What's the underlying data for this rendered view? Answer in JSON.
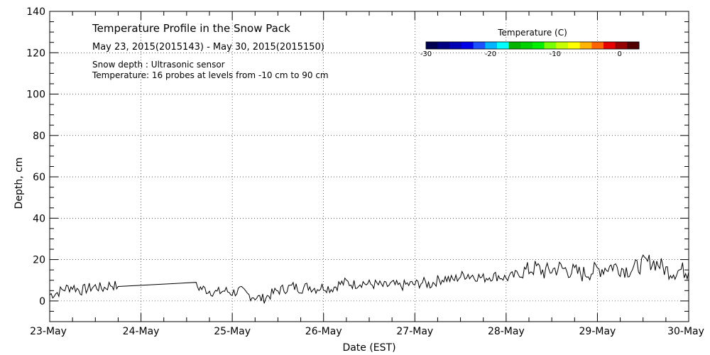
{
  "chart_data": {
    "type": "line",
    "title": "Temperature Profile in the Snow Pack",
    "subtitle": "May 23, 2015(2015143) - May 30, 2015(2015150)",
    "annotations": [
      "Snow depth : Ultrasonic sensor",
      "Temperature: 16 probes at levels from -10 cm to 90 cm"
    ],
    "xlabel": "Date (EST)",
    "ylabel": "Depth, cm",
    "x_ticks": [
      "23-May",
      "24-May",
      "25-May",
      "26-May",
      "27-May",
      "28-May",
      "29-May",
      "30-May"
    ],
    "xlim": [
      "23-May",
      "30-May"
    ],
    "ylim": [
      -10,
      140
    ],
    "y_ticks": [
      0,
      20,
      40,
      60,
      80,
      100,
      120,
      140
    ],
    "grid": true,
    "colorbar": {
      "title": "Temperature (C)",
      "range": [
        -30,
        3
      ],
      "tick_labels": [
        "-30",
        "-20",
        "-10",
        "0"
      ],
      "tick_values": [
        -30,
        -20,
        -10,
        0
      ],
      "colors": [
        "#000050",
        "#000080",
        "#0000b4",
        "#0000e6",
        "#1e50ff",
        "#00b4ff",
        "#00ffff",
        "#00b400",
        "#00d200",
        "#00f000",
        "#78ff00",
        "#c8ff00",
        "#ffff00",
        "#ffb400",
        "#ff6400",
        "#e60000",
        "#960000",
        "#500000"
      ]
    },
    "series": [
      {
        "color": "#000000",
        "points": [
          [
            "23-May 00:00",
            3
          ],
          [
            "23-May 02:00",
            4
          ],
          [
            "23-May 04:00",
            6
          ],
          [
            "23-May 06:00",
            7
          ],
          [
            "23-May 08:00",
            5
          ],
          [
            "23-May 10:00",
            6
          ],
          [
            "23-May 12:00",
            7
          ],
          [
            "23-May 14:00",
            6
          ],
          [
            "23-May 16:00",
            8
          ],
          [
            "23-May 18:00",
            7
          ],
          [
            "24-May 14:30",
            7
          ],
          [
            "24-May 16:00",
            6
          ],
          [
            "24-May 18:00",
            5
          ],
          [
            "24-May 20:00",
            4
          ],
          [
            "24-May 22:00",
            5
          ],
          [
            "25-May 00:00",
            4
          ],
          [
            "25-May 02:00",
            5
          ],
          [
            "25-May 04:00",
            3
          ],
          [
            "25-May 06:00",
            2
          ],
          [
            "25-May 08:00",
            1
          ],
          [
            "25-May 10:00",
            3
          ],
          [
            "25-May 12:00",
            5
          ],
          [
            "25-May 14:00",
            6
          ],
          [
            "25-May 16:00",
            7
          ],
          [
            "25-May 18:00",
            6
          ],
          [
            "25-May 20:00",
            7
          ],
          [
            "25-May 22:00",
            6
          ],
          [
            "26-May 00:00",
            7
          ],
          [
            "26-May 02:00",
            6
          ],
          [
            "26-May 04:00",
            8
          ],
          [
            "26-May 06:00",
            9
          ],
          [
            "26-May 08:00",
            8
          ],
          [
            "26-May 10:00",
            9
          ],
          [
            "26-May 12:00",
            8
          ],
          [
            "26-May 14:00",
            8
          ],
          [
            "26-May 16:00",
            7
          ],
          [
            "26-May 18:00",
            8
          ],
          [
            "26-May 20:00",
            7
          ],
          [
            "26-May 22:00",
            8
          ],
          [
            "27-May 00:00",
            8
          ],
          [
            "27-May 02:00",
            9
          ],
          [
            "27-May 04:00",
            8
          ],
          [
            "27-May 06:00",
            10
          ],
          [
            "27-May 08:00",
            11
          ],
          [
            "27-May 10:00",
            10
          ],
          [
            "27-May 12:00",
            12
          ],
          [
            "27-May 14:00",
            13
          ],
          [
            "27-May 16:00",
            12
          ],
          [
            "27-May 18:00",
            11
          ],
          [
            "27-May 20:00",
            12
          ],
          [
            "27-May 22:00",
            12
          ],
          [
            "28-May 00:00",
            11
          ],
          [
            "28-May 02:00",
            12
          ],
          [
            "28-May 04:00",
            14
          ],
          [
            "28-May 06:00",
            15
          ],
          [
            "28-May 08:00",
            16
          ],
          [
            "28-May 10:00",
            14
          ],
          [
            "28-May 12:00",
            15
          ],
          [
            "28-May 14:00",
            16
          ],
          [
            "28-May 16:00",
            15
          ],
          [
            "28-May 18:00",
            14
          ],
          [
            "28-May 20:00",
            13
          ],
          [
            "28-May 22:00",
            14
          ],
          [
            "29-May 00:00",
            15
          ],
          [
            "29-May 02:00",
            16
          ],
          [
            "29-May 04:00",
            17
          ],
          [
            "29-May 06:00",
            16
          ],
          [
            "29-May 08:00",
            15
          ],
          [
            "29-May 10:00",
            16
          ],
          [
            "29-May 12:00",
            18
          ],
          [
            "29-May 14:00",
            19
          ],
          [
            "29-May 16:00",
            18
          ],
          [
            "29-May 18:00",
            15
          ],
          [
            "29-May 20:00",
            14
          ],
          [
            "29-May 22:00",
            15
          ],
          [
            "30-May 00:00",
            14
          ]
        ]
      }
    ]
  }
}
